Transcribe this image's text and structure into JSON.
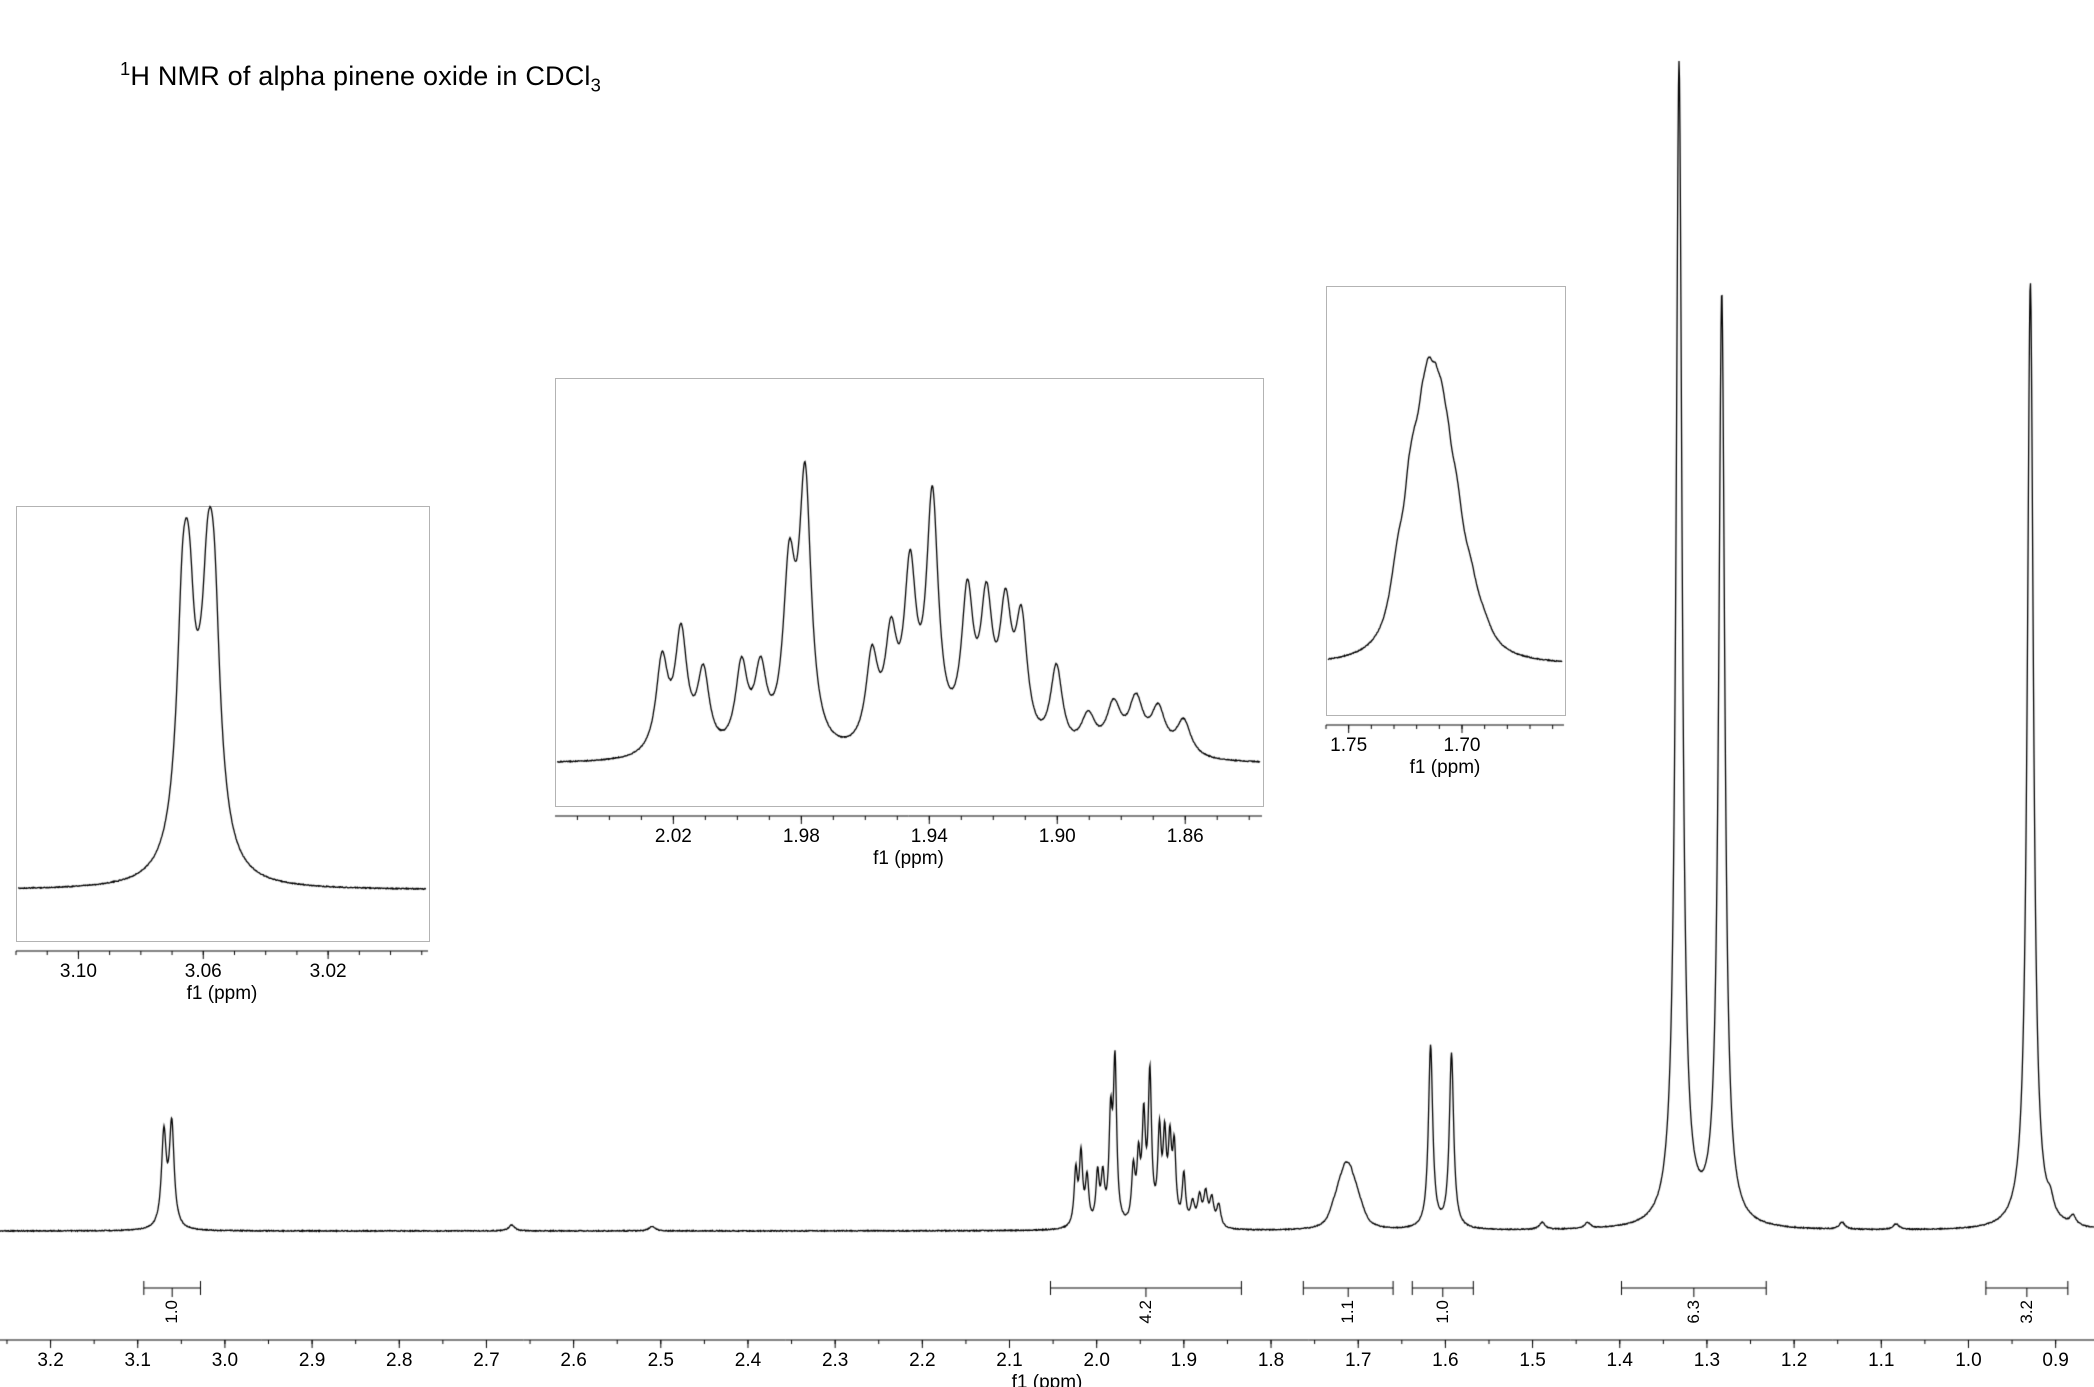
{
  "title": {
    "sup": "1",
    "main": "H NMR of alpha pinene oxide in CDCl",
    "sub": "3"
  },
  "chart_data": {
    "type": "line",
    "title": "¹H NMR of alpha pinene oxide in CDCl₃",
    "xlabel": "f1 (ppm)",
    "x_axis_reversed": true,
    "main_spectrum": {
      "xlim": [
        3.258,
        0.856
      ],
      "major_ticks": [
        "3.2",
        "3.1",
        "3.0",
        "2.9",
        "2.8",
        "2.7",
        "2.6",
        "2.5",
        "2.4",
        "2.3",
        "2.2",
        "2.1",
        "2.0",
        "1.9",
        "1.8",
        "1.7",
        "1.6",
        "1.5",
        "1.4",
        "1.3",
        "1.2",
        "1.1",
        "1.0",
        "0.9"
      ],
      "minor_tick_step": 0.05,
      "peaks": [
        {
          "x": 3.07,
          "h": 0.08,
          "w": 0.0033
        },
        {
          "x": 3.061,
          "h": 0.088,
          "w": 0.0033
        },
        {
          "x": 2.024,
          "h": 0.047,
          "w": 0.0023
        },
        {
          "x": 2.018,
          "h": 0.06,
          "w": 0.0023
        },
        {
          "x": 2.011,
          "h": 0.04,
          "w": 0.0023
        },
        {
          "x": 1.999,
          "h": 0.043,
          "w": 0.0023
        },
        {
          "x": 1.993,
          "h": 0.039,
          "w": 0.0023
        },
        {
          "x": 1.984,
          "h": 0.086,
          "w": 0.0023
        },
        {
          "x": 1.979,
          "h": 0.136,
          "w": 0.0023
        },
        {
          "x": 1.958,
          "h": 0.046,
          "w": 0.0023
        },
        {
          "x": 1.952,
          "h": 0.052,
          "w": 0.0023
        },
        {
          "x": 1.946,
          "h": 0.086,
          "w": 0.0023
        },
        {
          "x": 1.939,
          "h": 0.126,
          "w": 0.0023
        },
        {
          "x": 1.928,
          "h": 0.075,
          "w": 0.0023
        },
        {
          "x": 1.922,
          "h": 0.069,
          "w": 0.0023
        },
        {
          "x": 1.916,
          "h": 0.065,
          "w": 0.0023
        },
        {
          "x": 1.911,
          "h": 0.062,
          "w": 0.0023
        },
        {
          "x": 1.9,
          "h": 0.043,
          "w": 0.0023
        },
        {
          "x": 1.89,
          "h": 0.019,
          "w": 0.0028
        },
        {
          "x": 1.882,
          "h": 0.024,
          "w": 0.0028
        },
        {
          "x": 1.875,
          "h": 0.027,
          "w": 0.0028
        },
        {
          "x": 1.868,
          "h": 0.023,
          "w": 0.0028
        },
        {
          "x": 1.86,
          "h": 0.019,
          "w": 0.0028
        },
        {
          "x": 1.7285,
          "h": 0.01,
          "w": 0.006
        },
        {
          "x": 1.7215,
          "h": 0.02,
          "w": 0.006
        },
        {
          "x": 1.715,
          "h": 0.03,
          "w": 0.006
        },
        {
          "x": 1.709,
          "h": 0.027,
          "w": 0.006
        },
        {
          "x": 1.7025,
          "h": 0.017,
          "w": 0.006
        },
        {
          "x": 1.696,
          "h": 0.008,
          "w": 0.006
        },
        {
          "x": 1.617,
          "h": 0.157,
          "w": 0.003
        },
        {
          "x": 1.593,
          "h": 0.15,
          "w": 0.003
        },
        {
          "x": 1.332,
          "h": 1.0,
          "w": 0.0042
        },
        {
          "x": 1.283,
          "h": 0.8,
          "w": 0.0042
        },
        {
          "x": 0.929,
          "h": 0.815,
          "w": 0.0042
        },
        {
          "x": 0.906,
          "h": 0.012,
          "w": 0.004
        },
        {
          "x": 2.671,
          "h": 0.005,
          "w": 0.004
        },
        {
          "x": 2.51,
          "h": 0.004,
          "w": 0.004
        },
        {
          "x": 1.489,
          "h": 0.006,
          "w": 0.004
        },
        {
          "x": 1.437,
          "h": 0.005,
          "w": 0.004
        },
        {
          "x": 1.145,
          "h": 0.006,
          "w": 0.004
        },
        {
          "x": 1.083,
          "h": 0.005,
          "w": 0.004
        },
        {
          "x": 0.88,
          "h": 0.008,
          "w": 0.004
        }
      ],
      "integrations": [
        {
          "from": 3.093,
          "to": 3.028,
          "label": "1.0"
        },
        {
          "from": 2.053,
          "to": 1.834,
          "label": "4.2"
        },
        {
          "from": 1.763,
          "to": 1.66,
          "label": "1.1"
        },
        {
          "from": 1.638,
          "to": 1.568,
          "label": "1.0"
        },
        {
          "from": 1.398,
          "to": 1.232,
          "label": "6.3"
        },
        {
          "from": 0.98,
          "to": 0.886,
          "label": "3.2"
        }
      ]
    },
    "insets": [
      {
        "id": "epoxide-CH-3.06",
        "xlim": [
          3.12,
          2.988
        ],
        "major_ticks": [
          "3.10",
          "3.06",
          "3.02"
        ],
        "minor_tick_step": 0.01,
        "peaks": [
          {
            "x": 3.0671,
            "h": 0.18,
            "w": 0.0016
          },
          {
            "x": 3.0657,
            "h": 0.78,
            "w": 0.0031
          },
          {
            "x": 3.0643,
            "h": 0.14,
            "w": 0.0016
          },
          {
            "x": 3.0612,
            "h": 0.08,
            "w": 0.002
          },
          {
            "x": 3.059,
            "h": 0.16,
            "w": 0.0016
          },
          {
            "x": 3.0575,
            "h": 0.82,
            "w": 0.0031
          },
          {
            "x": 3.0561,
            "h": 0.15,
            "w": 0.0016
          }
        ]
      },
      {
        "id": "multiplet-1.86-2.02",
        "xlim": [
          2.057,
          1.836
        ],
        "major_ticks": [
          "2.02",
          "1.98",
          "1.94",
          "1.90",
          "1.86"
        ],
        "minor_tick_step": 0.01,
        "peaks": [
          {
            "x": 2.024,
            "h": 0.33,
            "w": 0.0023
          },
          {
            "x": 2.018,
            "h": 0.42,
            "w": 0.0023
          },
          {
            "x": 2.011,
            "h": 0.28,
            "w": 0.0023
          },
          {
            "x": 1.999,
            "h": 0.3,
            "w": 0.0023
          },
          {
            "x": 1.993,
            "h": 0.27,
            "w": 0.0023
          },
          {
            "x": 1.984,
            "h": 0.6,
            "w": 0.0023
          },
          {
            "x": 1.979,
            "h": 0.95,
            "w": 0.0023
          },
          {
            "x": 1.958,
            "h": 0.32,
            "w": 0.0023
          },
          {
            "x": 1.952,
            "h": 0.36,
            "w": 0.0023
          },
          {
            "x": 1.946,
            "h": 0.6,
            "w": 0.0023
          },
          {
            "x": 1.939,
            "h": 0.88,
            "w": 0.0023
          },
          {
            "x": 1.928,
            "h": 0.52,
            "w": 0.0023
          },
          {
            "x": 1.922,
            "h": 0.48,
            "w": 0.0023
          },
          {
            "x": 1.916,
            "h": 0.45,
            "w": 0.0023
          },
          {
            "x": 1.911,
            "h": 0.43,
            "w": 0.0023
          },
          {
            "x": 1.9,
            "h": 0.3,
            "w": 0.0023
          },
          {
            "x": 1.89,
            "h": 0.13,
            "w": 0.0028
          },
          {
            "x": 1.882,
            "h": 0.17,
            "w": 0.0028
          },
          {
            "x": 1.875,
            "h": 0.19,
            "w": 0.0028
          },
          {
            "x": 1.868,
            "h": 0.16,
            "w": 0.0028
          },
          {
            "x": 1.86,
            "h": 0.13,
            "w": 0.0028
          }
        ]
      },
      {
        "id": "multiplet-1.71",
        "xlim": [
          1.76,
          1.655
        ],
        "major_ticks": [
          "1.75",
          "1.70"
        ],
        "minor_tick_step": 0.01,
        "peaks": [
          {
            "x": 1.7285,
            "h": 0.26,
            "w": 0.0045
          },
          {
            "x": 1.724,
            "h": 0.1,
            "w": 0.002
          },
          {
            "x": 1.7215,
            "h": 0.5,
            "w": 0.0045
          },
          {
            "x": 1.718,
            "h": 0.1,
            "w": 0.0018
          },
          {
            "x": 1.715,
            "h": 0.76,
            "w": 0.0045
          },
          {
            "x": 1.7118,
            "h": 0.08,
            "w": 0.0016
          },
          {
            "x": 1.709,
            "h": 0.65,
            "w": 0.0045
          },
          {
            "x": 1.706,
            "h": 0.08,
            "w": 0.0016
          },
          {
            "x": 1.7025,
            "h": 0.4,
            "w": 0.0045
          },
          {
            "x": 1.696,
            "h": 0.17,
            "w": 0.0045
          },
          {
            "x": 1.69,
            "h": 0.06,
            "w": 0.0045
          }
        ]
      }
    ]
  }
}
